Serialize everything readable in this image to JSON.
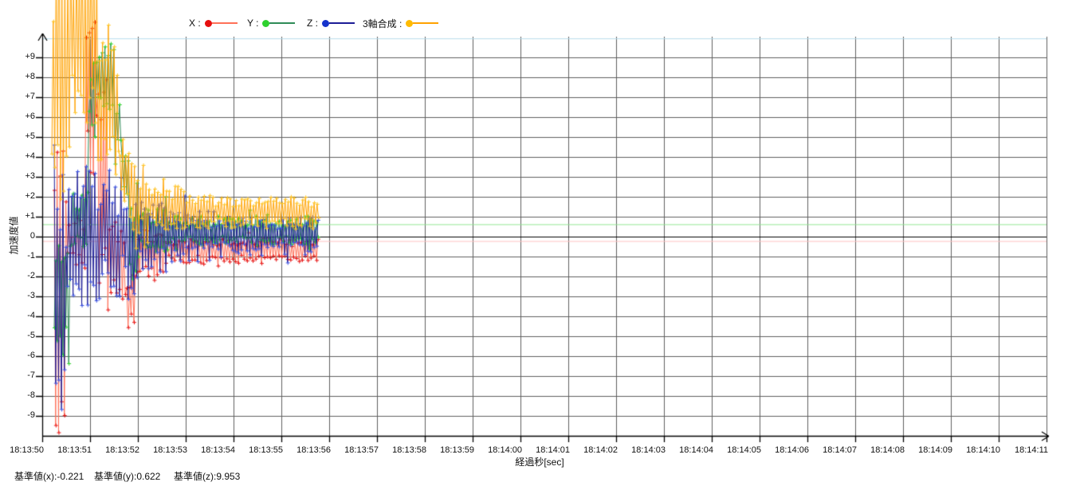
{
  "legend": {
    "items": [
      {
        "label": "X :",
        "dot_color": "#e60f0f",
        "line_color": "#ff7058"
      },
      {
        "label": "Y :",
        "dot_color": "#2ed12e",
        "line_color": "#2e8b57"
      },
      {
        "label": "Z :",
        "dot_color": "#1533cc",
        "line_color": "#1c1c96"
      },
      {
        "label": "3軸合成 :",
        "dot_color": "#ffbb00",
        "line_color": "#ffa200"
      }
    ]
  },
  "axes": {
    "y_label": "加速度値",
    "x_label": "経過秒[sec]"
  },
  "footer": {
    "items": [
      "基準値(x):-0.221",
      "基準値(y):0.622",
      "基準値(z):9.953"
    ]
  },
  "chart_data": {
    "type": "line",
    "title": "",
    "xlabel": "経過秒[sec]",
    "ylabel": "加速度値",
    "ylim": [
      -10,
      10.2
    ],
    "grid": true,
    "grid_color": "#5f5f5f",
    "zero_line_color": "#000000",
    "x_tick_labels": [
      "18:13:50",
      "18:13:51",
      "18:13:52",
      "18:13:53",
      "18:13:54",
      "18:13:55",
      "18:13:56",
      "18:13:57",
      "18:13:58",
      "18:13:59",
      "18:14:00",
      "18:14:01",
      "18:14:02",
      "18:14:03",
      "18:14:04",
      "18:14:05",
      "18:14:06",
      "18:14:07",
      "18:14:08",
      "18:14:09",
      "18:14:10",
      "18:14:11"
    ],
    "y_tick_labels": [
      "+9",
      "+8",
      "+7",
      "+6",
      "+5",
      "+4",
      "+3",
      "+2",
      "+1",
      "0",
      "-1",
      "-2",
      "-3",
      "-4",
      "-5",
      "-6",
      "-7",
      "-8",
      "-9"
    ],
    "x_interval_sec": 1,
    "legend_position": "top",
    "reference_lines": [
      {
        "name": "base-x",
        "value": -0.221,
        "color": "#ffc0c0"
      },
      {
        "name": "base-y",
        "value": 0.622,
        "color": "#93e693"
      },
      {
        "name": "base-z",
        "value": 9.953,
        "color": "#b7dded"
      }
    ],
    "sample_rate_hz": 33,
    "series": [
      {
        "name": "X",
        "line_color": "#ff7058",
        "marker_color": "#e60f0f",
        "marker": "+",
        "seed": 101,
        "t_start": 0.25,
        "t_end": 5.78,
        "segments": [
          [
            0.25,
            0.5,
            -2.0,
            11.0
          ],
          [
            0.5,
            0.9,
            -0.4,
            1.2
          ],
          [
            0.9,
            1.15,
            8.0,
            5.0
          ],
          [
            1.15,
            1.4,
            2.0,
            7.0
          ],
          [
            1.4,
            1.75,
            -1.2,
            2.2
          ],
          [
            1.75,
            1.95,
            -3.2,
            1.8
          ],
          [
            1.95,
            2.6,
            -0.9,
            1.3
          ],
          [
            2.6,
            5.78,
            -0.7,
            0.65
          ]
        ]
      },
      {
        "name": "Y",
        "line_color": "#2e8b57",
        "marker_color": "#2ed12e",
        "marker": "+",
        "seed": 202,
        "t_start": 0.25,
        "t_end": 5.78,
        "segments": [
          [
            0.25,
            0.6,
            -3.0,
            4.0
          ],
          [
            0.6,
            0.95,
            0.8,
            1.5
          ],
          [
            0.95,
            1.15,
            7.2,
            2.2
          ],
          [
            1.15,
            1.5,
            8.0,
            1.7
          ],
          [
            1.5,
            1.65,
            5.5,
            1.5
          ],
          [
            1.65,
            1.8,
            3.0,
            1.5
          ],
          [
            1.8,
            2.05,
            0.0,
            2.8
          ],
          [
            2.05,
            2.6,
            0.35,
            1.1
          ],
          [
            2.6,
            5.78,
            0.3,
            0.75
          ]
        ]
      },
      {
        "name": "Z",
        "line_color": "#1c1c96",
        "marker_color": "#3950e0",
        "marker": "+",
        "seed": 303,
        "t_start": 0.25,
        "t_end": 5.78,
        "segments": [
          [
            0.25,
            0.5,
            -3.0,
            8.0
          ],
          [
            0.5,
            0.95,
            0.2,
            3.8
          ],
          [
            0.95,
            1.4,
            0.0,
            3.4
          ],
          [
            1.4,
            1.75,
            0.0,
            3.0
          ],
          [
            1.75,
            2.0,
            -0.8,
            3.2
          ],
          [
            2.0,
            2.6,
            0.0,
            1.9
          ],
          [
            2.6,
            3.6,
            0.05,
            1.3
          ],
          [
            3.6,
            5.78,
            0.05,
            1.0
          ]
        ]
      },
      {
        "name": "3軸合成",
        "line_color": "#ffa200",
        "marker_color": "#ffc629",
        "marker": "+",
        "seed": 404,
        "t_start": 0.2,
        "t_end": 5.78,
        "segments": [
          [
            0.2,
            0.6,
            8.0,
            7.0
          ],
          [
            0.6,
            1.15,
            10.0,
            5.0
          ],
          [
            1.15,
            1.6,
            6.5,
            4.2
          ],
          [
            1.6,
            1.85,
            3.2,
            2.6
          ],
          [
            1.85,
            2.2,
            1.6,
            2.2
          ],
          [
            2.2,
            3.0,
            1.45,
            1.1
          ],
          [
            3.0,
            5.78,
            1.25,
            0.85
          ]
        ]
      }
    ]
  }
}
